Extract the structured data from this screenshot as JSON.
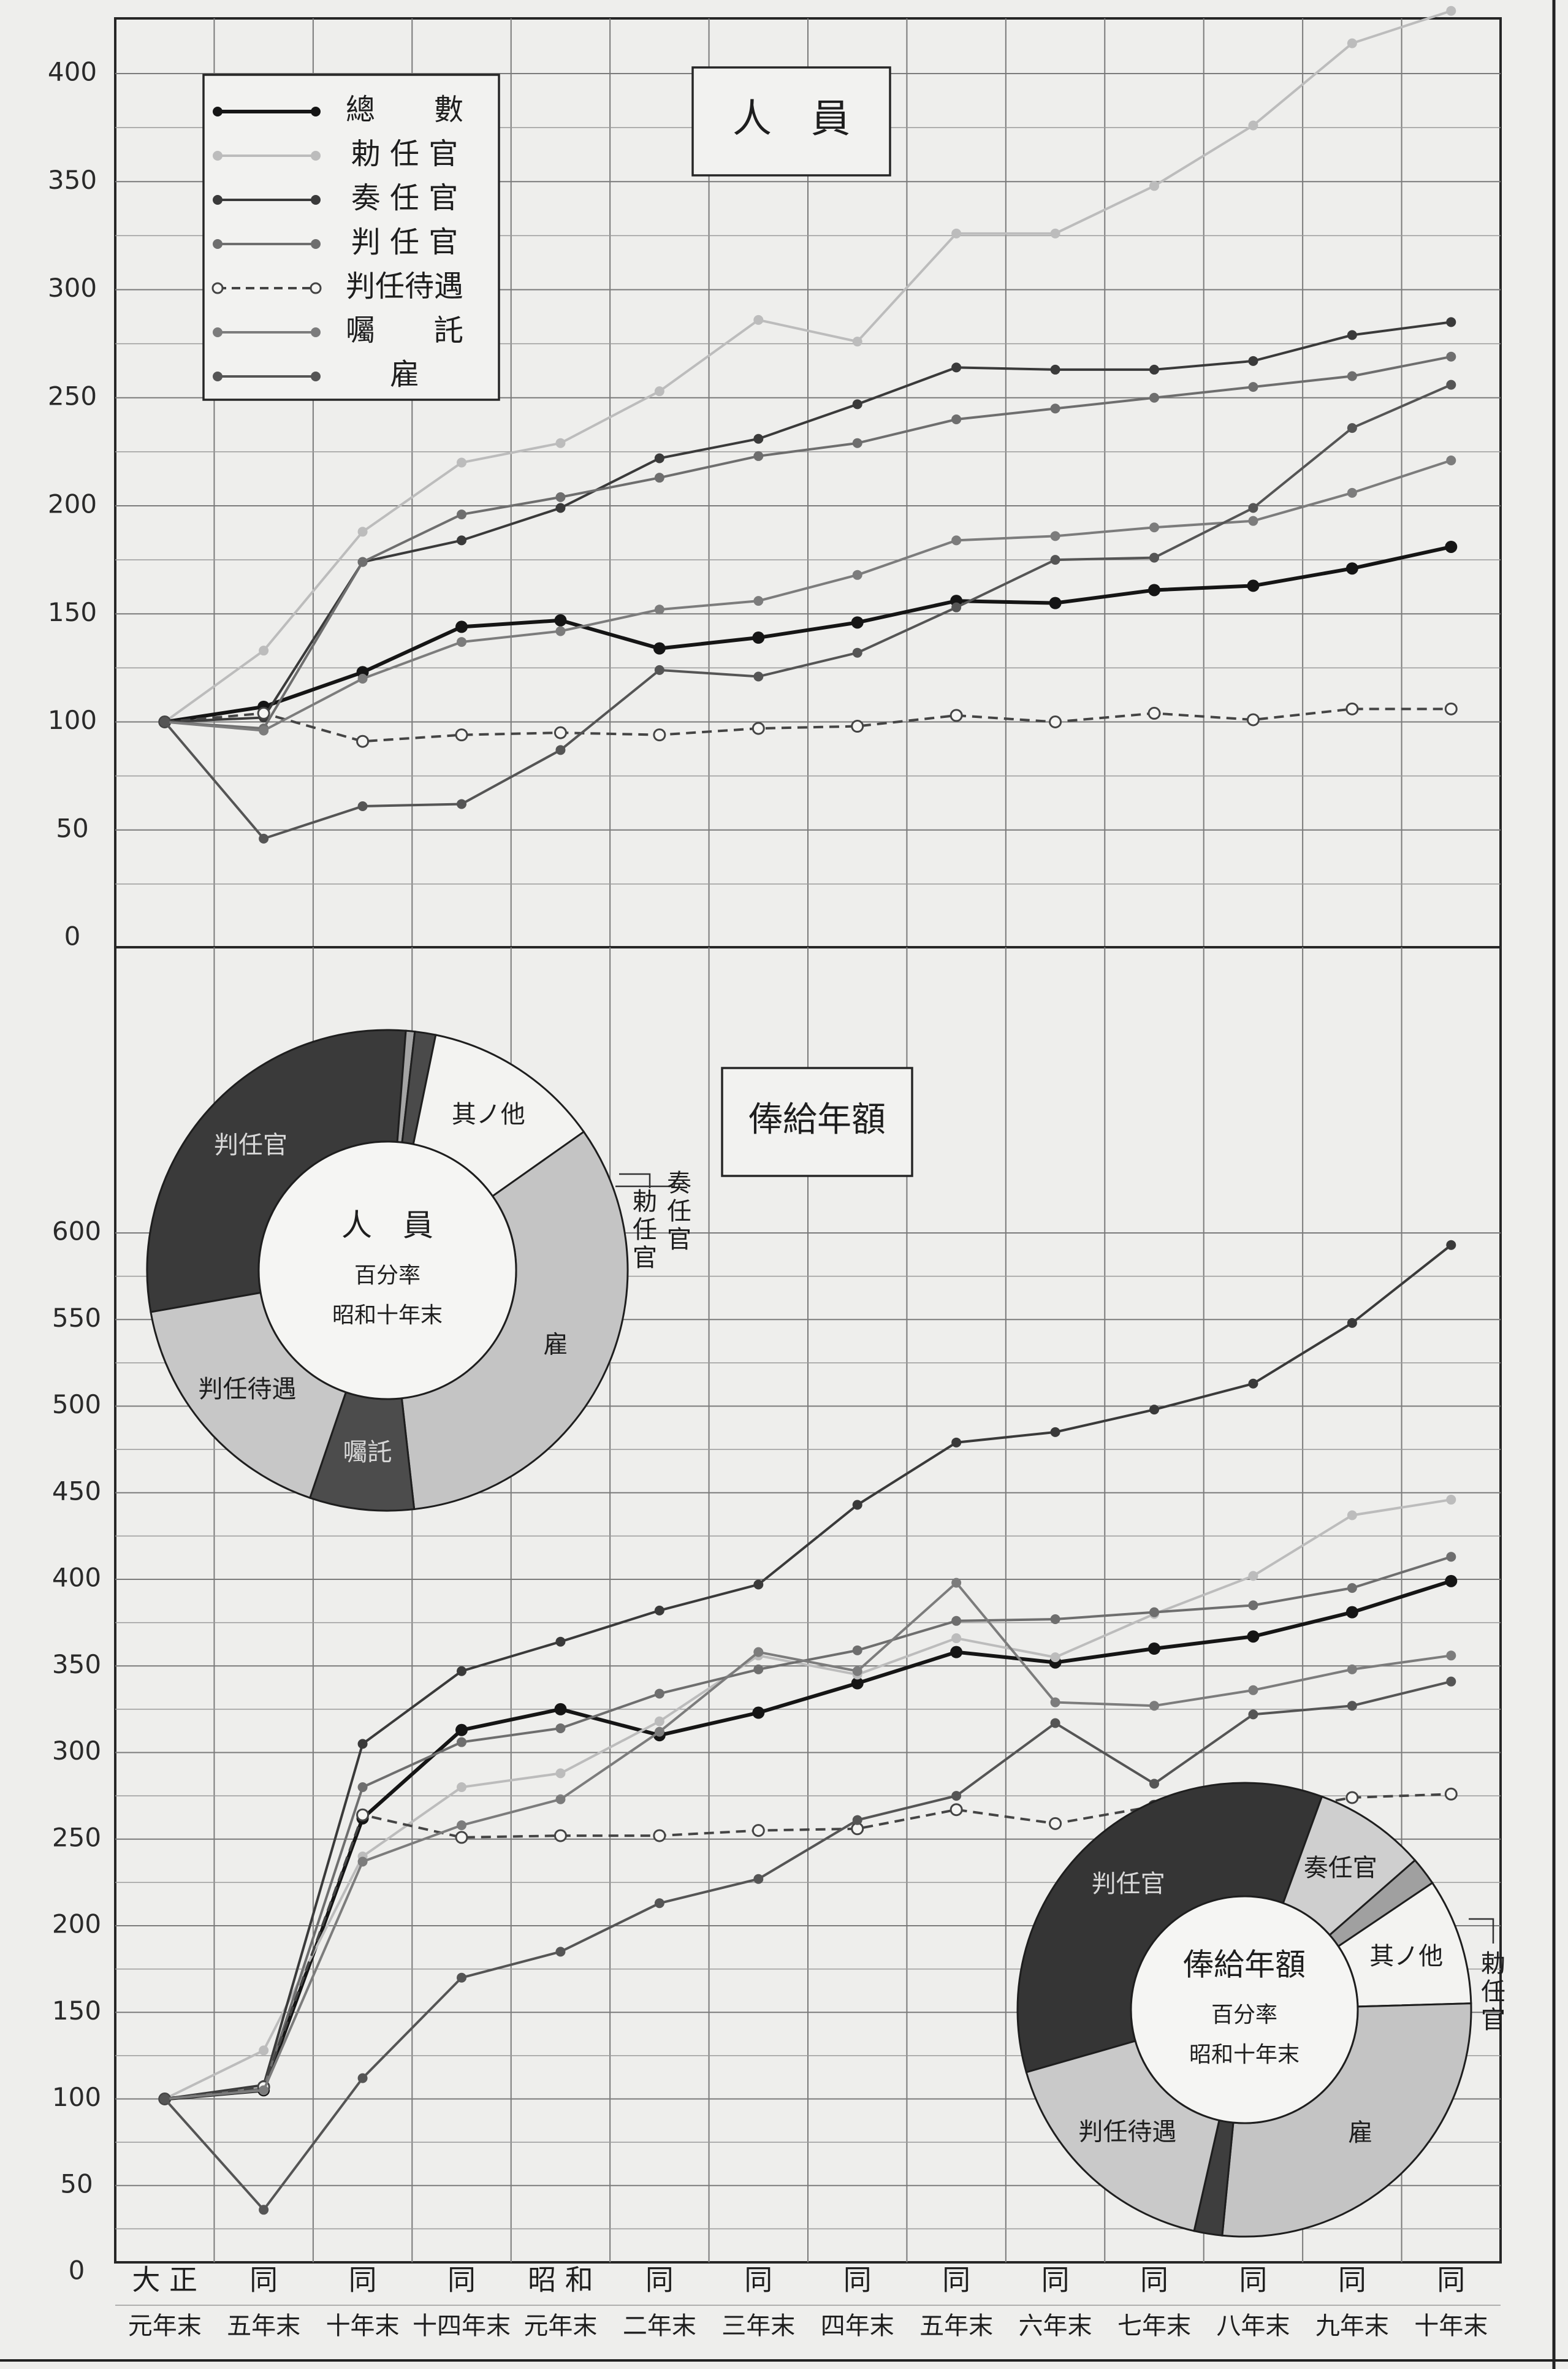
{
  "chart_data": [
    {
      "type": "line",
      "title": "人　員",
      "categories": [
        "大正元年末",
        "同五年末",
        "同十年末",
        "同十四年末",
        "昭和元年末",
        "同二年末",
        "同三年末",
        "同四年末",
        "同五年末",
        "同六年末",
        "同七年末",
        "同八年末",
        "同九年末",
        "同十年末"
      ],
      "y_ticks": [
        "0",
        "50",
        "100",
        "150",
        "200",
        "250",
        "300",
        "350",
        "400"
      ],
      "ylim": [
        0,
        430
      ],
      "grid": true,
      "legend_position": "top-left",
      "series": [
        {
          "name": "總　　數",
          "color": "#151515",
          "dashed": false,
          "hollow": false,
          "values": [
            100,
            107,
            123,
            144,
            147,
            134,
            139,
            146,
            156,
            155,
            161,
            163,
            171,
            181
          ]
        },
        {
          "name": "勅 任 官",
          "color": "#bcbcbc",
          "dashed": false,
          "hollow": false,
          "values": [
            100,
            133,
            188,
            220,
            229,
            253,
            286,
            276,
            326,
            326,
            348,
            376,
            414,
            429
          ]
        },
        {
          "name": "奏 任 官",
          "color": "#3a3a3a",
          "dashed": false,
          "hollow": false,
          "values": [
            100,
            102,
            174,
            184,
            199,
            222,
            231,
            247,
            264,
            263,
            263,
            267,
            279,
            285
          ]
        },
        {
          "name": "判 任 官",
          "color": "#6e6e6e",
          "dashed": false,
          "hollow": false,
          "values": [
            100,
            97,
            174,
            196,
            204,
            213,
            223,
            229,
            240,
            245,
            250,
            255,
            260,
            269
          ]
        },
        {
          "name": "判任待遇",
          "color": "#444444",
          "dashed": true,
          "hollow": true,
          "values": [
            100,
            104,
            91,
            94,
            95,
            94,
            97,
            98,
            103,
            100,
            104,
            101,
            106,
            106
          ]
        },
        {
          "name": "囑　　託",
          "color": "#7c7c7c",
          "dashed": false,
          "hollow": false,
          "values": [
            100,
            96,
            120,
            137,
            142,
            152,
            156,
            168,
            184,
            186,
            190,
            193,
            206,
            221
          ]
        },
        {
          "name": "雇",
          "color": "#555555",
          "dashed": false,
          "hollow": false,
          "values": [
            100,
            46,
            61,
            62,
            87,
            124,
            121,
            132,
            153,
            175,
            176,
            199,
            236,
            256
          ]
        }
      ],
      "pie": {
        "title": "人　員",
        "subtitle_1": "百分率",
        "subtitle_2": "昭和十年末",
        "slices": [
          {
            "label": "判任官",
            "value": 29,
            "color": "#3a3a3a"
          },
          {
            "label": "勅任官",
            "value": 0.6,
            "color": "#a4a4a4"
          },
          {
            "label": "奏任官",
            "value": 1.4,
            "color": "#4a4a4a"
          },
          {
            "label": "其ノ他",
            "value": 12,
            "color": "#f3f3f1"
          },
          {
            "label": "雇",
            "value": 33,
            "color": "#c4c4c4"
          },
          {
            "label": "囑託",
            "value": 7,
            "color": "#4c4c4c"
          },
          {
            "label": "判任待遇",
            "value": 17,
            "color": "#c7c7c7"
          }
        ]
      }
    },
    {
      "type": "line",
      "title": "俸給年額",
      "categories": [
        "大正元年末",
        "同五年末",
        "同十年末",
        "同十四年末",
        "昭和元年末",
        "同二年末",
        "同三年末",
        "同四年末",
        "同五年末",
        "同六年末",
        "同七年末",
        "同八年末",
        "同九年末",
        "同十年末"
      ],
      "y_ticks": [
        "0",
        "50",
        "100",
        "150",
        "200",
        "250",
        "300",
        "350",
        "400",
        "450",
        "500",
        "550",
        "600"
      ],
      "ylim": [
        0,
        610
      ],
      "grid": true,
      "series": [
        {
          "name": "總　　數",
          "color": "#151515",
          "dashed": false,
          "hollow": false,
          "values": [
            100,
            105,
            262,
            313,
            325,
            310,
            323,
            340,
            358,
            352,
            360,
            367,
            381,
            399
          ]
        },
        {
          "name": "勅 任 官",
          "color": "#bcbcbc",
          "dashed": false,
          "hollow": false,
          "values": [
            100,
            128,
            240,
            280,
            288,
            318,
            356,
            345,
            366,
            355,
            380,
            402,
            437,
            446
          ]
        },
        {
          "name": "奏 任 官",
          "color": "#3a3a3a",
          "dashed": false,
          "hollow": false,
          "values": [
            100,
            108,
            305,
            347,
            364,
            382,
            397,
            443,
            479,
            485,
            498,
            513,
            548,
            593
          ]
        },
        {
          "name": "判 任 官",
          "color": "#6e6e6e",
          "dashed": false,
          "hollow": false,
          "values": [
            100,
            106,
            280,
            306,
            314,
            334,
            348,
            359,
            376,
            377,
            381,
            385,
            395,
            413
          ]
        },
        {
          "name": "判任待遇",
          "color": "#444444",
          "dashed": true,
          "hollow": true,
          "values": [
            100,
            107,
            264,
            251,
            252,
            252,
            255,
            256,
            267,
            259,
            269,
            264,
            274,
            276
          ]
        },
        {
          "name": "囑　　託",
          "color": "#7c7c7c",
          "dashed": false,
          "hollow": false,
          "values": [
            100,
            105,
            237,
            258,
            273,
            312,
            358,
            347,
            398,
            329,
            327,
            336,
            348,
            356
          ]
        },
        {
          "name": "雇",
          "color": "#555555",
          "dashed": false,
          "hollow": false,
          "values": [
            100,
            36,
            112,
            170,
            185,
            213,
            227,
            261,
            275,
            317,
            282,
            322,
            327,
            341
          ]
        }
      ],
      "pie": {
        "title": "俸給年額",
        "subtitle_1": "百分率",
        "subtitle_2": "昭和十年末",
        "slices": [
          {
            "label": "判任官",
            "value": 35,
            "color": "#353535"
          },
          {
            "label": "奏任官",
            "value": 8,
            "color": "#cfcfcf"
          },
          {
            "label": "勅任官",
            "value": 2,
            "color": "#a0a0a0"
          },
          {
            "label": "其ノ他",
            "value": 9,
            "color": "#f3f3f1"
          },
          {
            "label": "雇",
            "value": 27,
            "color": "#c4c4c4"
          },
          {
            "label": "囑託",
            "value": 2,
            "color": "#3e3e3e"
          },
          {
            "label": "判任待遇",
            "value": 17,
            "color": "#c9c9c9"
          }
        ]
      }
    }
  ],
  "x_labels_top": [
    "大 正",
    "同",
    "同",
    "同",
    "昭 和",
    "同",
    "同",
    "同",
    "同",
    "同",
    "同",
    "同",
    "同",
    "同"
  ],
  "x_labels_bottom": [
    "元年末",
    "五年末",
    "十年末",
    "十四年末",
    "元年末",
    "二年末",
    "三年末",
    "四年末",
    "五年末",
    "六年末",
    "七年末",
    "八年末",
    "九年末",
    "十年末"
  ]
}
